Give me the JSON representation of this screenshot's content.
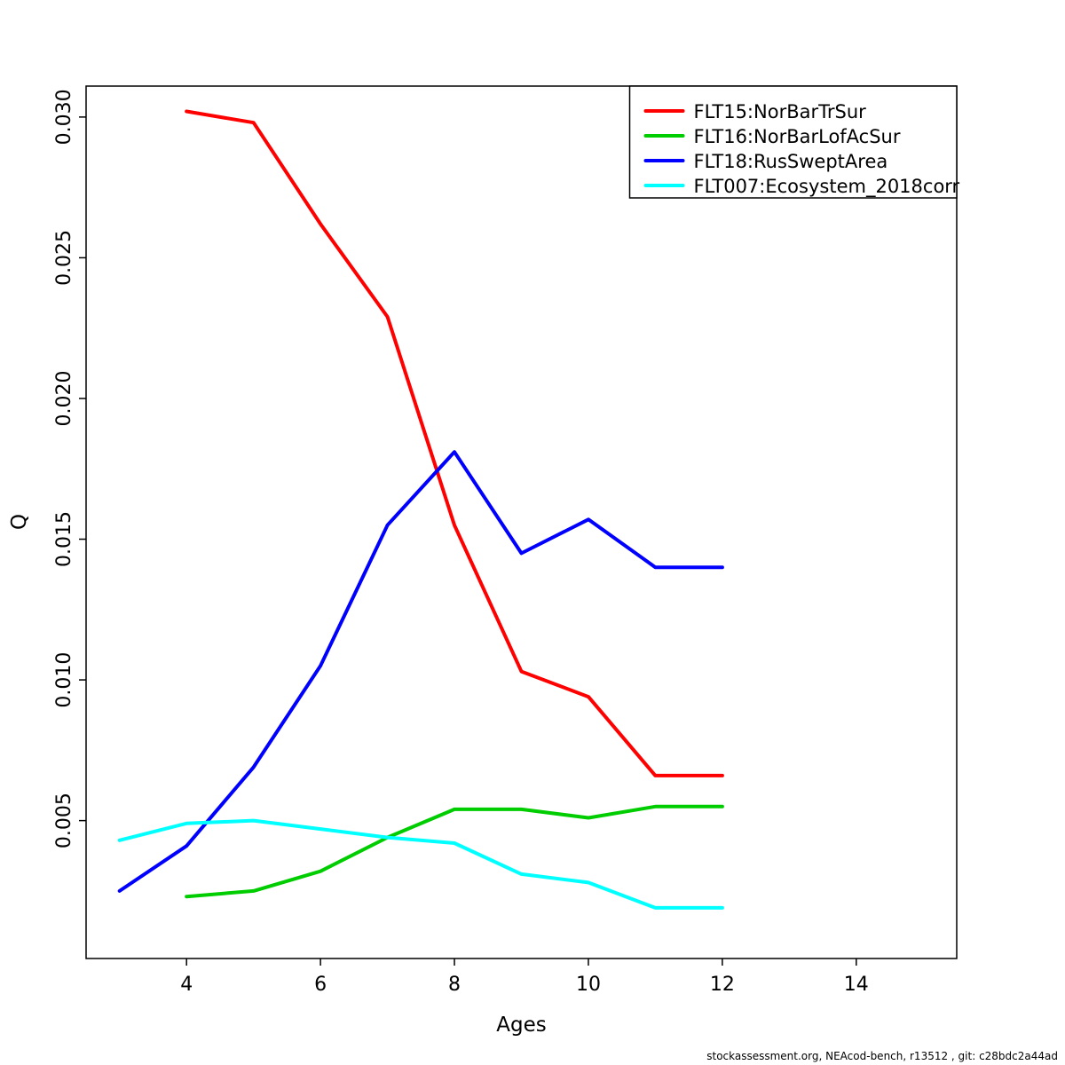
{
  "figure": {
    "xlabel": "Ages",
    "ylabel": "Q",
    "footer": "stockassessment.org, NEAcod-bench, r13512 , git: c28bdc2a44ad"
  },
  "chart_data": {
    "type": "line",
    "title": "",
    "xlabel": "Ages",
    "ylabel": "Q",
    "xlim": [
      2.5,
      15.5
    ],
    "ylim": [
      0.0001,
      0.0311
    ],
    "xticks": [
      4,
      6,
      8,
      10,
      12,
      14
    ],
    "yticks": [
      0.005,
      0.01,
      0.015,
      0.02,
      0.025,
      0.03
    ],
    "ytick_labels": [
      "0.005",
      "0.010",
      "0.015",
      "0.020",
      "0.025",
      "0.030"
    ],
    "grid": false,
    "legend_position": "top-right",
    "series": [
      {
        "name": "FLT15:NorBarTrSur",
        "color": "#ff0000",
        "x": [
          4,
          5,
          6,
          7,
          8,
          9,
          10,
          11,
          12
        ],
        "y": [
          0.0302,
          0.0298,
          0.0262,
          0.0229,
          0.0155,
          0.0103,
          0.0094,
          0.0066,
          0.0066
        ]
      },
      {
        "name": "FLT16:NorBarLofAcSur",
        "color": "#00cd00",
        "x": [
          4,
          5,
          6,
          7,
          8,
          9,
          10,
          11,
          12
        ],
        "y": [
          0.0023,
          0.0025,
          0.0032,
          0.0044,
          0.0054,
          0.0054,
          0.0051,
          0.0055,
          0.0055
        ]
      },
      {
        "name": "FLT18:RusSweptArea",
        "color": "#0000ff",
        "x": [
          3,
          4,
          5,
          6,
          7,
          8,
          9,
          10,
          11,
          12
        ],
        "y": [
          0.0025,
          0.0041,
          0.0069,
          0.0105,
          0.0155,
          0.0181,
          0.0145,
          0.0157,
          0.014,
          0.014
        ]
      },
      {
        "name": "FLT007:Ecosystem_2018corr",
        "color": "#00ffff",
        "x": [
          3,
          4,
          5,
          6,
          7,
          8,
          9,
          10,
          11,
          12
        ],
        "y": [
          0.0043,
          0.0049,
          0.005,
          0.0047,
          0.0044,
          0.0042,
          0.0031,
          0.0028,
          0.0019,
          0.0019
        ]
      }
    ]
  }
}
